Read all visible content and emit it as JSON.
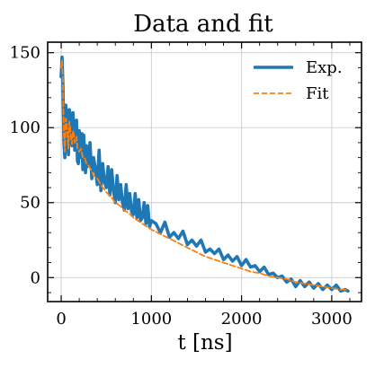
{
  "chart_data": {
    "type": "line",
    "title": "Data and fit",
    "xlabel": "t [ns]",
    "ylabel": "",
    "xlim": [
      -150,
      3330
    ],
    "ylim": [
      -16,
      157
    ],
    "xticks": [
      0,
      1000,
      2000,
      3000
    ],
    "yticks": [
      0,
      50,
      100,
      150
    ],
    "grid": true,
    "legend": {
      "placement": "top-right",
      "entries": [
        "Exp.",
        "Fit"
      ]
    },
    "series": [
      {
        "name": "Exp.",
        "style": "solid",
        "color": "#1f77b4",
        "x": [
          0,
          10,
          20,
          30,
          40,
          50,
          60,
          70,
          80,
          90,
          100,
          110,
          120,
          130,
          140,
          150,
          160,
          170,
          180,
          190,
          200,
          210,
          220,
          230,
          240,
          250,
          260,
          270,
          280,
          290,
          300,
          320,
          340,
          360,
          380,
          400,
          420,
          440,
          460,
          480,
          500,
          520,
          540,
          560,
          580,
          600,
          620,
          640,
          660,
          680,
          700,
          720,
          740,
          760,
          780,
          800,
          820,
          840,
          860,
          880,
          900,
          920,
          940,
          960,
          980,
          1000,
          1050,
          1100,
          1150,
          1200,
          1250,
          1300,
          1350,
          1400,
          1450,
          1500,
          1550,
          1600,
          1650,
          1700,
          1750,
          1800,
          1850,
          1900,
          1950,
          2000,
          2050,
          2100,
          2150,
          2200,
          2250,
          2300,
          2350,
          2400,
          2450,
          2500,
          2550,
          2600,
          2650,
          2700,
          2750,
          2800,
          2850,
          2900,
          2950,
          3000,
          3050,
          3100,
          3150,
          3180
        ],
        "y": [
          134,
          147,
          128,
          90,
          80,
          115,
          108,
          95,
          82,
          112,
          106,
          92,
          88,
          110,
          100,
          85,
          95,
          105,
          78,
          76,
          98,
          90,
          80,
          96,
          72,
          95,
          82,
          70,
          88,
          74,
          75,
          90,
          66,
          80,
          72,
          62,
          85,
          58,
          76,
          64,
          60,
          74,
          55,
          72,
          58,
          50,
          68,
          52,
          62,
          50,
          45,
          62,
          46,
          56,
          44,
          42,
          56,
          40,
          52,
          38,
          40,
          50,
          36,
          48,
          34,
          38,
          36,
          30,
          37,
          27,
          30,
          26,
          31,
          22,
          25,
          21,
          25,
          17,
          19,
          16,
          19,
          12,
          15,
          11,
          14,
          8,
          12,
          7,
          8,
          4,
          7,
          2,
          3,
          0,
          1,
          -3,
          -1,
          -6,
          -2,
          -6,
          -3,
          -7,
          -4,
          -8,
          -5,
          -8,
          -5,
          -9,
          -8,
          -9
        ]
      },
      {
        "name": "Fit",
        "style": "dashed",
        "color": "#ff7f0e",
        "x": [
          0,
          10,
          20,
          30,
          40,
          50,
          60,
          70,
          80,
          90,
          100,
          110,
          120,
          130,
          140,
          150,
          160,
          170,
          180,
          200,
          220,
          240,
          260,
          280,
          300,
          330,
          360,
          400,
          450,
          500,
          550,
          600,
          650,
          700,
          750,
          800,
          850,
          900,
          950,
          1000,
          1100,
          1200,
          1300,
          1400,
          1500,
          1600,
          1700,
          1800,
          1900,
          2000,
          2100,
          2200,
          2300,
          2400,
          2500,
          2600,
          2700,
          2800,
          2900,
          3000,
          3100,
          3180
        ],
        "y": [
          140,
          145,
          128,
          96,
          84,
          106,
          104,
          94,
          86,
          104,
          100,
          92,
          89,
          98,
          96,
          90,
          92,
          94,
          86,
          84,
          86,
          80,
          80,
          76,
          75,
          72,
          68,
          66,
          61,
          57,
          54,
          50,
          48,
          45,
          43,
          40,
          38,
          36,
          34,
          32,
          29,
          26,
          23,
          20,
          17,
          14,
          12,
          10,
          8,
          6,
          4,
          3,
          1,
          0,
          -1,
          -3,
          -4,
          -5,
          -6,
          -7,
          -8,
          -8
        ]
      }
    ]
  }
}
